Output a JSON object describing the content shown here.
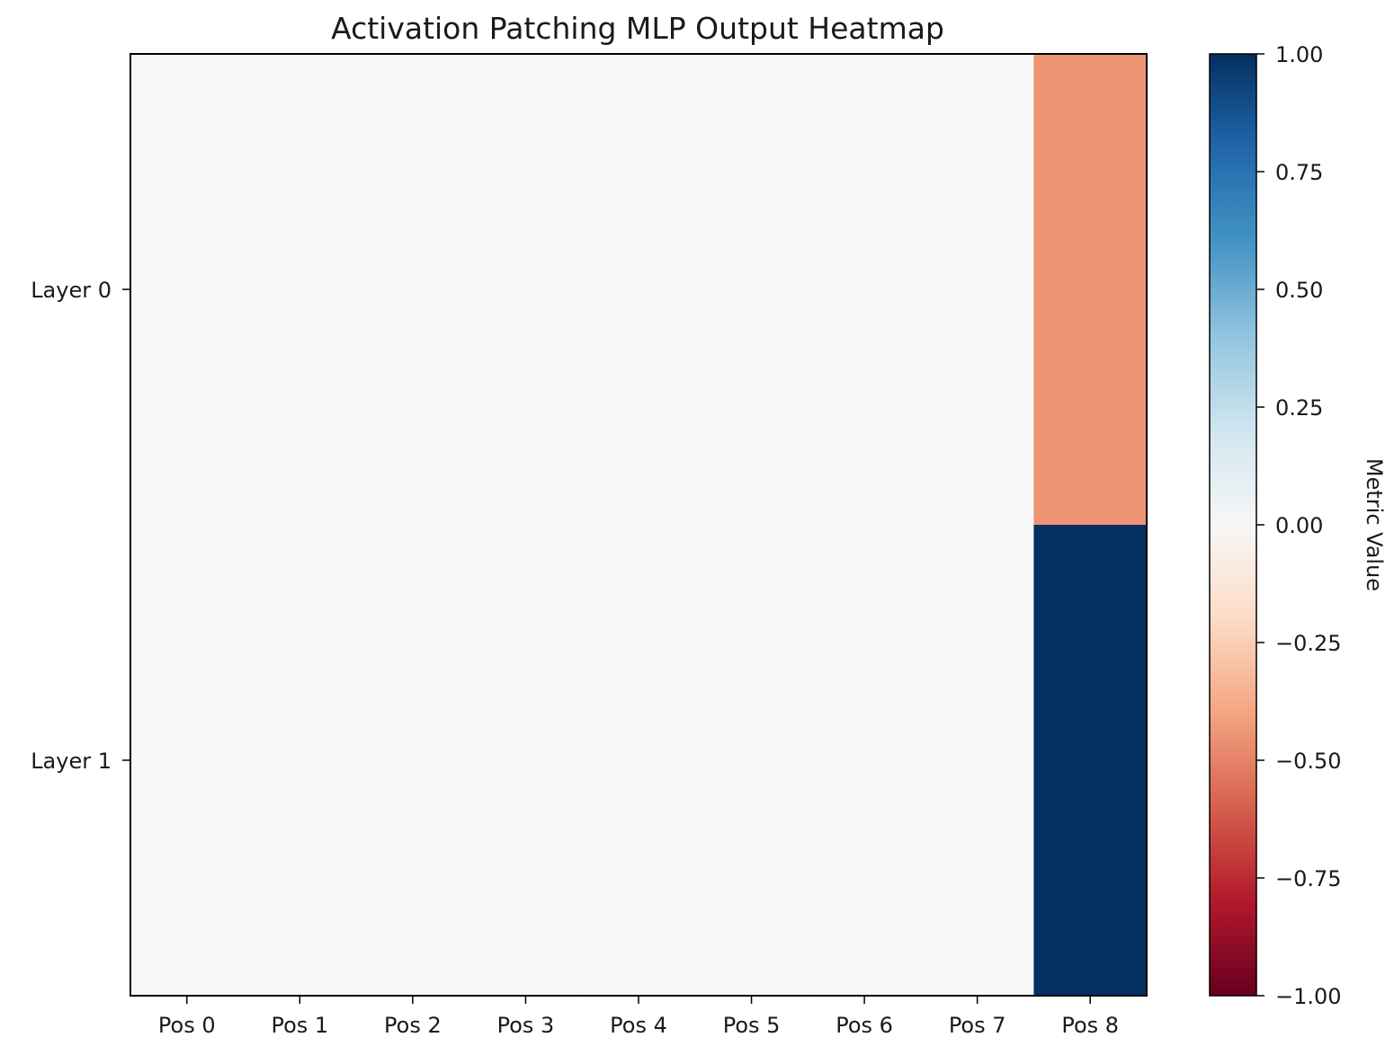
{
  "chart_data": {
    "type": "heatmap",
    "title": "Activation Patching MLP Output Heatmap",
    "x_labels": [
      "Pos 0",
      "Pos 1",
      "Pos 2",
      "Pos 3",
      "Pos 4",
      "Pos 5",
      "Pos 6",
      "Pos 7",
      "Pos 8"
    ],
    "y_labels": [
      "Layer 0",
      "Layer 1"
    ],
    "values": [
      [
        0,
        0,
        0,
        0,
        0,
        0,
        0,
        0,
        -0.45
      ],
      [
        0,
        0,
        0,
        0,
        0,
        0,
        0,
        0,
        1.0
      ]
    ],
    "colormap": "RdBu",
    "vmin": -1.0,
    "vmax": 1.0,
    "colorbar": {
      "label": "Metric Value",
      "ticks": [
        1.0,
        0.75,
        0.5,
        0.25,
        0.0,
        -0.25,
        -0.5,
        -0.75,
        -1.0
      ],
      "tick_labels": [
        "1.00",
        "0.75",
        "0.50",
        "0.25",
        "0.00",
        "−0.25",
        "−0.50",
        "−0.75",
        "−1.00"
      ]
    }
  }
}
